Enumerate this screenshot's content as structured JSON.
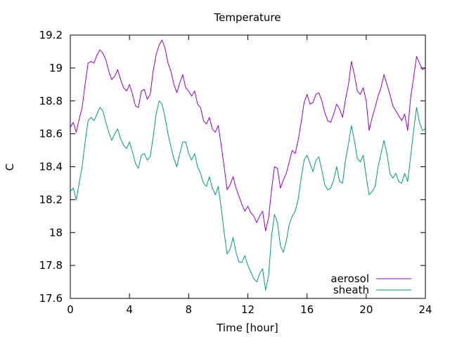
{
  "chart_data": {
    "type": "line",
    "title": "Temperature",
    "xlabel": "Time [hour]",
    "ylabel": "C",
    "xlim": [
      0,
      24
    ],
    "ylim": [
      17.6,
      19.2
    ],
    "xticks": [
      0,
      4,
      8,
      12,
      16,
      20,
      24
    ],
    "yticks": [
      17.6,
      17.8,
      18.0,
      18.2,
      18.4,
      18.6,
      18.8,
      19.0,
      19.2
    ],
    "ytick_labels": [
      "17.6",
      "17.8",
      "18",
      "18.2",
      "18.4",
      "18.6",
      "18.8",
      "19",
      "19.2"
    ],
    "grid": false,
    "legend_position": "bottom-right",
    "series": [
      {
        "name": "aerosol",
        "color": "#9400d3",
        "x": [
          0,
          0.2,
          0.4,
          0.6,
          0.8,
          1.0,
          1.2,
          1.4,
          1.6,
          1.8,
          2.0,
          2.2,
          2.4,
          2.6,
          2.8,
          3.0,
          3.2,
          3.4,
          3.6,
          3.8,
          4.0,
          4.2,
          4.4,
          4.6,
          4.8,
          5.0,
          5.2,
          5.4,
          5.6,
          5.8,
          6.0,
          6.2,
          6.4,
          6.6,
          6.8,
          7.0,
          7.2,
          7.4,
          7.6,
          7.8,
          8.0,
          8.2,
          8.4,
          8.6,
          8.8,
          9.0,
          9.2,
          9.4,
          9.6,
          9.8,
          10.0,
          10.2,
          10.4,
          10.6,
          10.8,
          11.0,
          11.2,
          11.4,
          11.6,
          11.8,
          12.0,
          12.2,
          12.4,
          12.6,
          12.8,
          13.0,
          13.2,
          13.4,
          13.6,
          13.8,
          14.0,
          14.2,
          14.4,
          14.6,
          14.8,
          15.0,
          15.2,
          15.4,
          15.6,
          15.8,
          16.0,
          16.2,
          16.4,
          16.6,
          16.8,
          17.0,
          17.2,
          17.4,
          17.6,
          17.8,
          18.0,
          18.2,
          18.4,
          18.6,
          18.8,
          19.0,
          19.2,
          19.4,
          19.6,
          19.8,
          20.0,
          20.2,
          20.4,
          20.6,
          20.8,
          21.0,
          21.2,
          21.4,
          21.6,
          21.8,
          22.0,
          22.2,
          22.4,
          22.6,
          22.8,
          23.0,
          23.2,
          23.4,
          23.6,
          23.8,
          24.0
        ],
        "y": [
          18.64,
          18.67,
          18.61,
          18.69,
          18.76,
          18.9,
          19.03,
          19.04,
          19.03,
          19.08,
          19.11,
          19.09,
          19.05,
          18.98,
          18.93,
          18.95,
          18.99,
          18.93,
          18.88,
          18.86,
          18.9,
          18.84,
          18.77,
          18.76,
          18.86,
          18.87,
          18.81,
          18.84,
          18.98,
          19.08,
          19.14,
          19.17,
          19.12,
          19.03,
          18.98,
          18.9,
          18.85,
          18.91,
          18.96,
          18.88,
          18.86,
          18.83,
          18.86,
          18.78,
          18.76,
          18.68,
          18.66,
          18.7,
          18.63,
          18.61,
          18.65,
          18.53,
          18.4,
          18.26,
          18.29,
          18.34,
          18.27,
          18.22,
          18.17,
          18.13,
          18.16,
          18.12,
          18.1,
          18.06,
          18.1,
          18.13,
          18.01,
          18.09,
          18.26,
          18.4,
          18.39,
          18.27,
          18.32,
          18.36,
          18.43,
          18.5,
          18.48,
          18.56,
          18.67,
          18.79,
          18.84,
          18.78,
          18.79,
          18.84,
          18.85,
          18.8,
          18.73,
          18.68,
          18.67,
          18.72,
          18.78,
          18.75,
          18.7,
          18.81,
          18.9,
          19.04,
          18.96,
          18.86,
          18.84,
          18.88,
          18.8,
          18.62,
          18.7,
          18.76,
          18.83,
          18.88,
          18.96,
          18.9,
          18.84,
          18.77,
          18.74,
          18.71,
          18.68,
          18.72,
          18.62,
          18.82,
          18.94,
          19.07,
          19.03,
          18.99,
          19.0
        ]
      },
      {
        "name": "sheath",
        "color": "#009e73",
        "x": [
          0,
          0.2,
          0.4,
          0.6,
          0.8,
          1.0,
          1.2,
          1.4,
          1.6,
          1.8,
          2.0,
          2.2,
          2.4,
          2.6,
          2.8,
          3.0,
          3.2,
          3.4,
          3.6,
          3.8,
          4.0,
          4.2,
          4.4,
          4.6,
          4.8,
          5.0,
          5.2,
          5.4,
          5.6,
          5.8,
          6.0,
          6.2,
          6.4,
          6.6,
          6.8,
          7.0,
          7.2,
          7.4,
          7.6,
          7.8,
          8.0,
          8.2,
          8.4,
          8.6,
          8.8,
          9.0,
          9.2,
          9.4,
          9.6,
          9.8,
          10.0,
          10.2,
          10.4,
          10.6,
          10.8,
          11.0,
          11.2,
          11.4,
          11.6,
          11.8,
          12.0,
          12.2,
          12.4,
          12.6,
          12.8,
          13.0,
          13.2,
          13.4,
          13.6,
          13.8,
          14.0,
          14.2,
          14.4,
          14.6,
          14.8,
          15.0,
          15.2,
          15.4,
          15.6,
          15.8,
          16.0,
          16.2,
          16.4,
          16.6,
          16.8,
          17.0,
          17.2,
          17.4,
          17.6,
          17.8,
          18.0,
          18.2,
          18.4,
          18.6,
          18.8,
          19.0,
          19.2,
          19.4,
          19.6,
          19.8,
          20.0,
          20.2,
          20.4,
          20.6,
          20.8,
          21.0,
          21.2,
          21.4,
          21.6,
          21.8,
          22.0,
          22.2,
          22.4,
          22.6,
          22.8,
          23.0,
          23.2,
          23.4,
          23.6,
          23.8,
          24.0
        ],
        "y": [
          18.25,
          18.27,
          18.2,
          18.3,
          18.4,
          18.55,
          18.68,
          18.7,
          18.68,
          18.72,
          18.76,
          18.74,
          18.67,
          18.61,
          18.56,
          18.6,
          18.63,
          18.57,
          18.53,
          18.51,
          18.55,
          18.49,
          18.42,
          18.39,
          18.47,
          18.48,
          18.44,
          18.46,
          18.58,
          18.72,
          18.8,
          18.78,
          18.7,
          18.6,
          18.52,
          18.45,
          18.4,
          18.48,
          18.55,
          18.55,
          18.48,
          18.44,
          18.48,
          18.4,
          18.36,
          18.3,
          18.28,
          18.34,
          18.27,
          18.23,
          18.28,
          18.15,
          18.0,
          17.87,
          17.9,
          17.97,
          17.88,
          17.82,
          17.82,
          17.86,
          17.8,
          17.76,
          17.72,
          17.7,
          17.75,
          17.78,
          17.65,
          17.74,
          17.98,
          18.11,
          18.06,
          17.92,
          17.88,
          17.95,
          18.05,
          18.1,
          18.13,
          18.2,
          18.33,
          18.44,
          18.47,
          18.42,
          18.37,
          18.44,
          18.46,
          18.38,
          18.29,
          18.26,
          18.27,
          18.32,
          18.4,
          18.31,
          18.3,
          18.44,
          18.54,
          18.65,
          18.56,
          18.45,
          18.43,
          18.47,
          18.34,
          18.23,
          18.25,
          18.28,
          18.4,
          18.48,
          18.56,
          18.48,
          18.36,
          18.33,
          18.36,
          18.31,
          18.3,
          18.36,
          18.31,
          18.46,
          18.62,
          18.76,
          18.67,
          18.62,
          18.63
        ]
      }
    ]
  }
}
